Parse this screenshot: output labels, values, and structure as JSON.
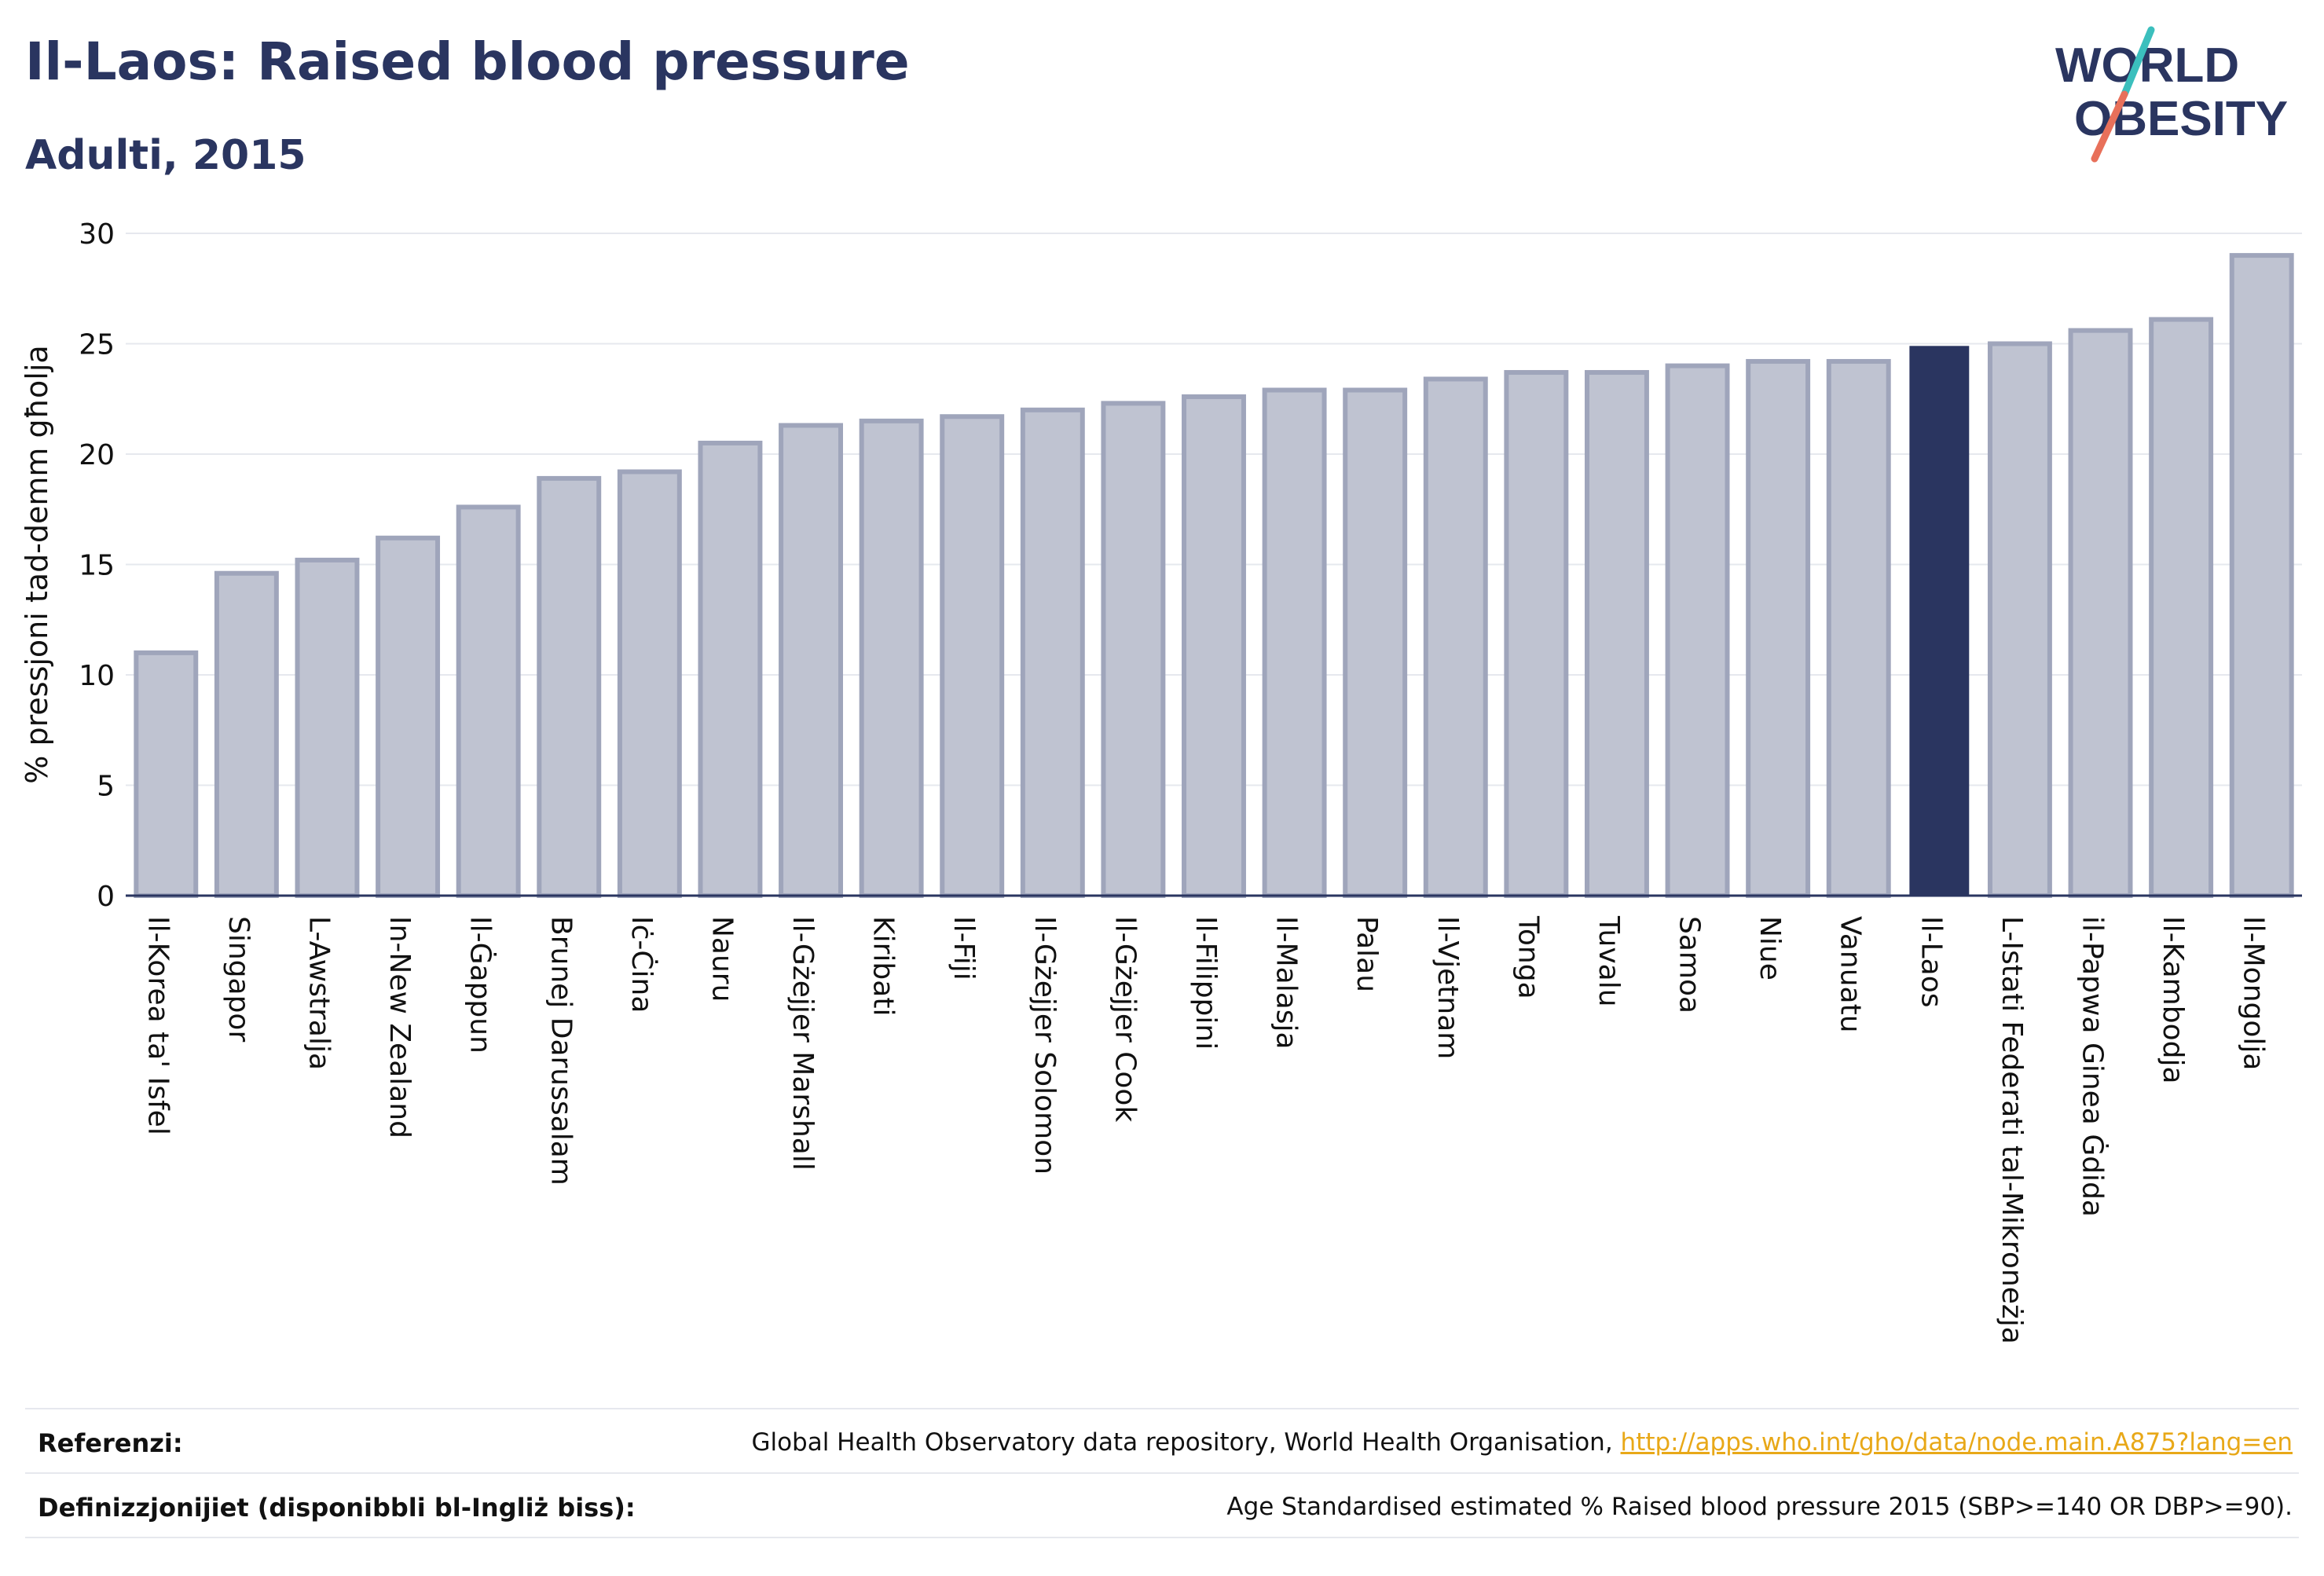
{
  "header": {
    "title": "Il-Laos: Raised blood pressure",
    "subtitle": "Adulti, 2015"
  },
  "logo": {
    "line1": "WORLD",
    "line2": "OBESITY"
  },
  "colors": {
    "bar": "#bfc3d1",
    "bar_stroke": "#9fa5bb",
    "highlight": "#2a3560",
    "grid": "#e6e8ee",
    "axis": "#2a3560",
    "text": "#111111",
    "title": "#2a3560",
    "link": "#e8a818",
    "logo_teal": "#3bbfbd",
    "logo_coral": "#e8705a"
  },
  "chart_data": {
    "type": "bar",
    "title": "Il-Laos: Raised blood pressure",
    "subtitle": "Adulti, 2015",
    "xlabel": "",
    "ylabel": "% pressjoni tad-demm għolja",
    "ylim": [
      0,
      30
    ],
    "yticks": [
      0,
      5,
      10,
      15,
      20,
      25,
      30
    ],
    "grid": true,
    "highlight": "Il-Laos",
    "categories": [
      "Il-Korea ta' Isfel",
      "Singapor",
      "L-Awstralja",
      "In-New Zealand",
      "Il-Ġappun",
      "Brunej Darussalam",
      "Iċ-Ċina",
      "Nauru",
      "Il-Gżejjer Marshall",
      "Kiribati",
      "Il-Fiji",
      "Il-Gżejjer Solomon",
      "Il-Gżejjer Cook",
      "Il-Filippini",
      "Il-Malasja",
      "Palau",
      "Il-Vjetnam",
      "Tonga",
      "Tuvalu",
      "Samoa",
      "Niue",
      "Vanuatu",
      "Il-Laos",
      "L-Istati Federati tal-Mikroneżja",
      "il-Papwa Ginea Ġdida",
      "Il-Kambodja",
      "Il-Mongolja"
    ],
    "values": [
      11.0,
      14.6,
      15.2,
      16.2,
      17.6,
      18.9,
      19.2,
      20.5,
      21.3,
      21.5,
      21.7,
      22.0,
      22.3,
      22.6,
      22.9,
      22.9,
      23.4,
      23.7,
      23.7,
      24.0,
      24.2,
      24.2,
      24.9,
      25.0,
      25.6,
      26.1,
      29.0
    ]
  },
  "footer": {
    "references_label": "Referenzi:",
    "references_text": "Global Health Observatory data repository, World Health Organisation, ",
    "references_link": "http://apps.who.int/gho/data/node.main.A875?lang=en",
    "definitions_label": "Definizzjonijiet (disponibbli bl-Ingliż biss):",
    "definitions_text": "Age Standardised estimated % Raised blood pressure 2015 (SBP>=140 OR DBP>=90)."
  }
}
